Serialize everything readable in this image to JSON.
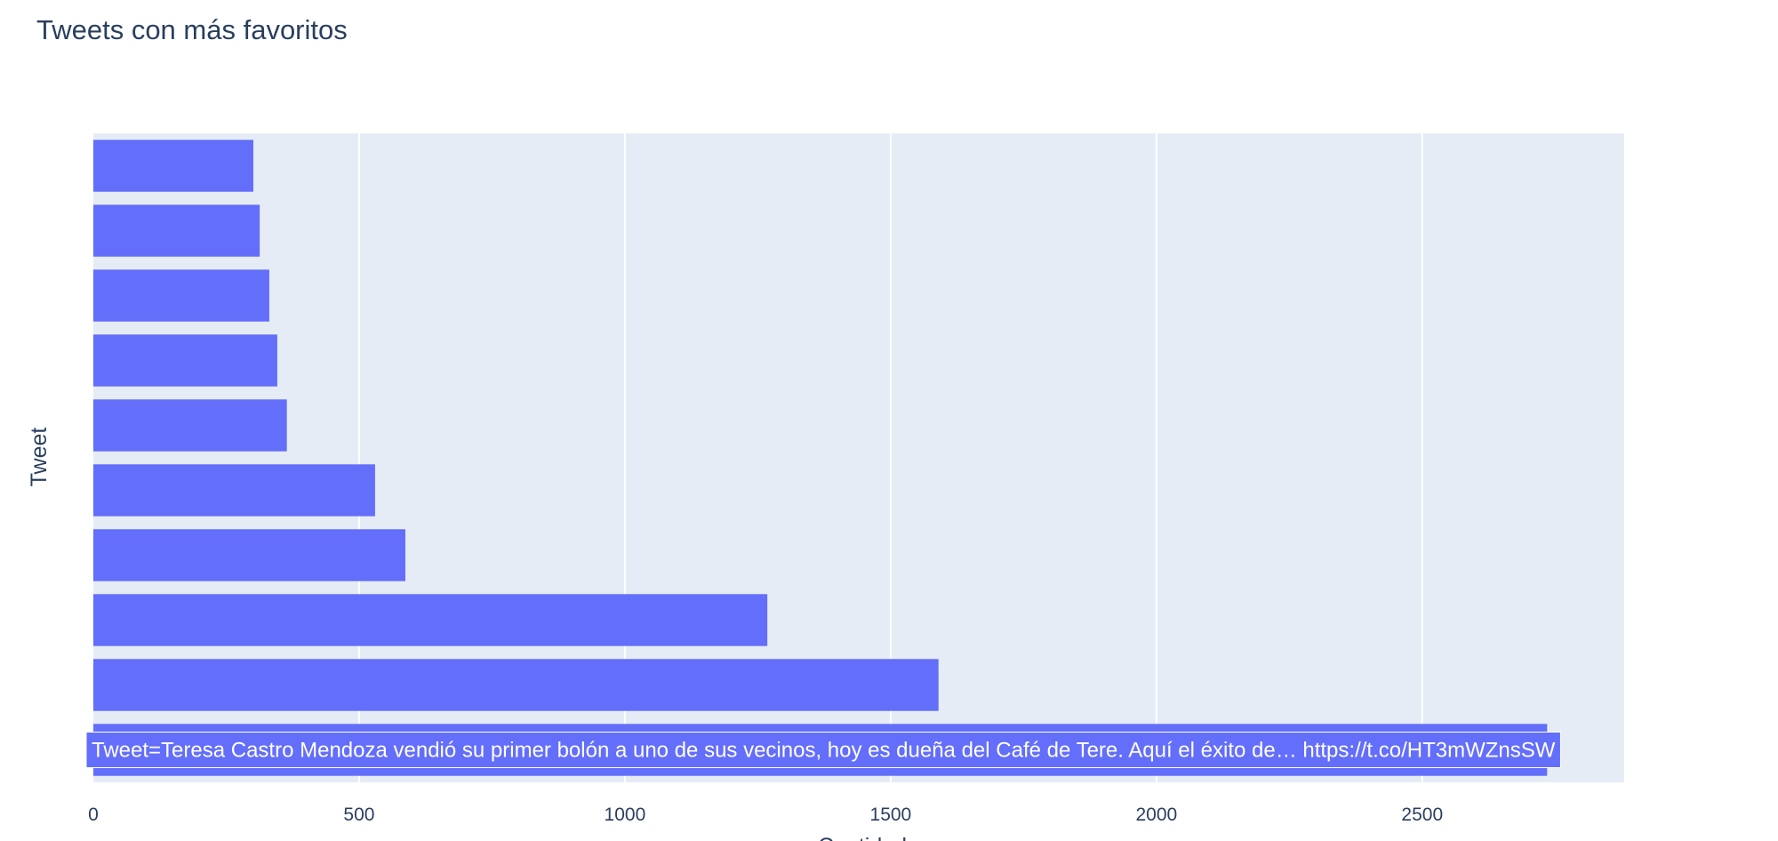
{
  "chart_data": {
    "type": "bar",
    "orientation": "horizontal",
    "title": "Tweets con más favoritos",
    "xlabel": "Cantidad",
    "ylabel": "Tweet",
    "xlim": [
      0,
      2880
    ],
    "xticks": [
      0,
      500,
      1000,
      1500,
      2000,
      2500
    ],
    "grid": true,
    "values": [
      2735,
      1590,
      1268,
      587,
      530,
      364,
      346,
      331,
      313,
      301
    ],
    "hover_label": "Tweet=Teresa Castro Mendoza vendió su primer bolón a uno de sus vecinos, hoy es dueña del Café de Tere. Aquí el éxito de… https://t.co/HT3mWZnsSW",
    "colors": {
      "bar": "#636efa",
      "plot_bg": "#e5ecf6",
      "grid": "#ffffff",
      "text": "#2a3f5f",
      "hover_text": "#ffffff"
    }
  }
}
